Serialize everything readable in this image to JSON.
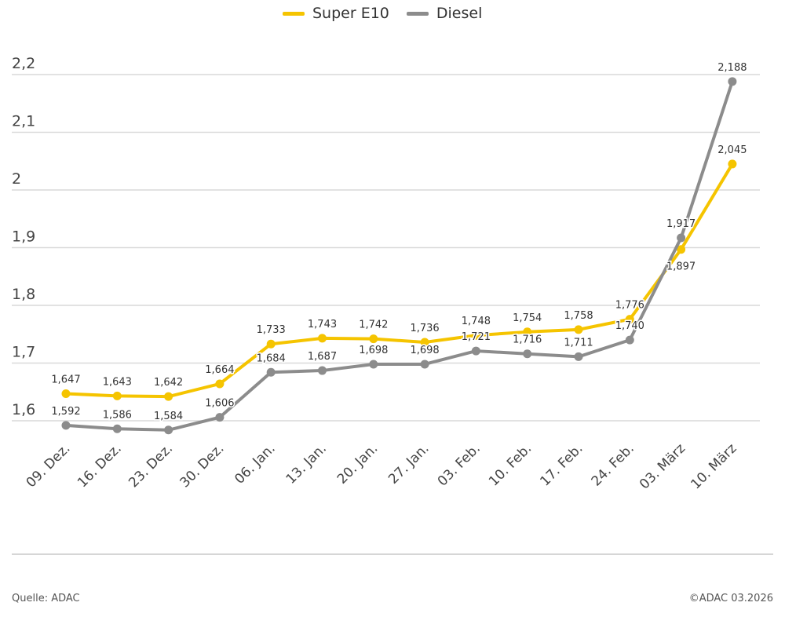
{
  "chart_data": {
    "type": "line",
    "title": "",
    "xlabel": "",
    "ylabel": "",
    "ylim": [
      1.55,
      2.2
    ],
    "yticks": [
      1.6,
      1.7,
      1.8,
      1.9,
      2.0,
      2.1,
      2.2
    ],
    "ytick_labels": [
      "1,6",
      "1,7",
      "1,8",
      "1,9",
      "2",
      "2,1",
      "2,2"
    ],
    "grid": true,
    "legend_position": "top-center",
    "categories": [
      "09. Dez.",
      "16. Dez.",
      "23. Dez.",
      "30. Dez.",
      "06. Jan.",
      "13. Jan.",
      "20. Jan.",
      "27. Jan.",
      "03. Feb.",
      "10. Feb.",
      "17. Feb.",
      "24. Feb.",
      "03. März",
      "10. März"
    ],
    "series": [
      {
        "name": "Super E10",
        "color": "#f5c400",
        "values": [
          1.647,
          1.643,
          1.642,
          1.664,
          1.733,
          1.743,
          1.742,
          1.736,
          1.748,
          1.754,
          1.758,
          1.776,
          1.897,
          2.045
        ],
        "labels": [
          "1,647",
          "1,643",
          "1,642",
          "1,664",
          "1,733",
          "1,743",
          "1,742",
          "1,736",
          "1,748",
          "1,754",
          "1,758",
          "1,776",
          "1,897",
          "2,045"
        ]
      },
      {
        "name": "Diesel",
        "color": "#8c8c8c",
        "values": [
          1.592,
          1.586,
          1.584,
          1.606,
          1.684,
          1.687,
          1.698,
          1.698,
          1.721,
          1.716,
          1.711,
          1.74,
          1.917,
          2.188
        ],
        "labels": [
          "1,592",
          "1,586",
          "1,584",
          "1,606",
          "1,684",
          "1,687",
          "1,698",
          "1,698",
          "1,721",
          "1,716",
          "1,711",
          "1,740",
          "1,917",
          "2,188"
        ]
      }
    ]
  },
  "footer": {
    "source": "Quelle: ADAC",
    "copyright": "©ADAC 03.2026"
  }
}
